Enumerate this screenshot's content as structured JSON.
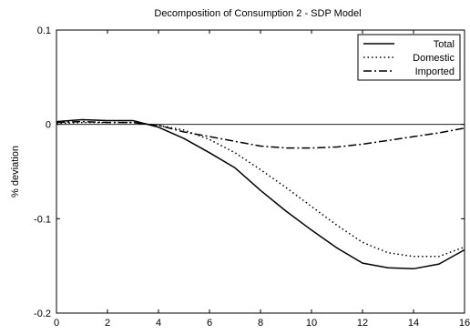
{
  "chart_data": {
    "type": "line",
    "title": "Decomposition of Consumption 2 - SDP Model",
    "xlabel": "",
    "ylabel": "% deviation",
    "xlim": [
      0,
      16
    ],
    "ylim": [
      -0.2,
      0.1
    ],
    "xticks": [
      0,
      2,
      4,
      6,
      8,
      10,
      12,
      14,
      16
    ],
    "yticks": [
      0.1,
      0,
      -0.1,
      -0.2
    ],
    "ytick_labels": [
      "0.1",
      "0",
      "-0.1",
      "-0.2"
    ],
    "zero_line": 0,
    "grid": false,
    "legend_position": "top-right",
    "x": [
      0,
      1,
      2,
      3,
      4,
      5,
      6,
      7,
      8,
      9,
      10,
      11,
      12,
      13,
      14,
      15,
      16
    ],
    "series": [
      {
        "name": "Total",
        "style": "solid",
        "values": [
          0.003,
          0.005,
          0.004,
          0.004,
          -0.003,
          -0.015,
          -0.03,
          -0.046,
          -0.07,
          -0.092,
          -0.112,
          -0.131,
          -0.147,
          -0.152,
          -0.153,
          -0.148,
          -0.133
        ]
      },
      {
        "name": "Domestic",
        "style": "dotted",
        "values": [
          0.001,
          0.002,
          0.002,
          0.002,
          -0.001,
          -0.006,
          -0.016,
          -0.03,
          -0.048,
          -0.067,
          -0.087,
          -0.107,
          -0.125,
          -0.136,
          -0.14,
          -0.14,
          -0.13
        ]
      },
      {
        "name": "Imported",
        "style": "dashdot",
        "values": [
          0.002,
          0.003,
          0.002,
          0.002,
          -0.001,
          -0.008,
          -0.013,
          -0.018,
          -0.023,
          -0.025,
          -0.025,
          -0.024,
          -0.021,
          -0.017,
          -0.013,
          -0.009,
          -0.004
        ]
      }
    ]
  }
}
